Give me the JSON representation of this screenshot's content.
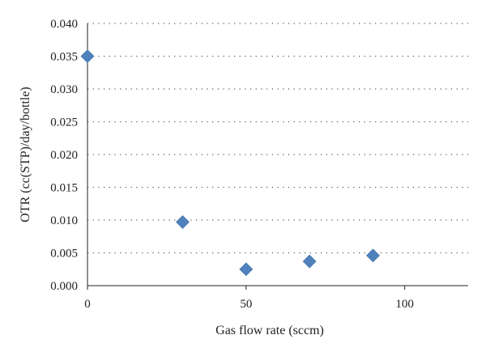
{
  "chart_data": {
    "type": "scatter",
    "title": "",
    "xlabel": "Gas flow rate (sccm)",
    "ylabel": "OTR (cc(STP)/day/bottle)",
    "xlim": [
      0,
      120
    ],
    "ylim": [
      0,
      0.04
    ],
    "xticks": [
      0,
      50,
      100
    ],
    "xtick_labels": [
      "0",
      "50",
      "100"
    ],
    "yticks": [
      0,
      0.005,
      0.01,
      0.015,
      0.02,
      0.025,
      0.03,
      0.035,
      0.04
    ],
    "ytick_labels": [
      "0.000",
      "0.005",
      "0.010",
      "0.015",
      "0.020",
      "0.025",
      "0.030",
      "0.035",
      "0.040"
    ],
    "grid": "horizontal dotted",
    "marker": "diamond",
    "series": [
      {
        "color": "#4f81bd",
        "points": [
          {
            "x": 0,
            "y": 0.035
          },
          {
            "x": 30,
            "y": 0.0097
          },
          {
            "x": 50,
            "y": 0.0025
          },
          {
            "x": 70,
            "y": 0.0037
          },
          {
            "x": 90,
            "y": 0.0046
          }
        ]
      }
    ]
  }
}
